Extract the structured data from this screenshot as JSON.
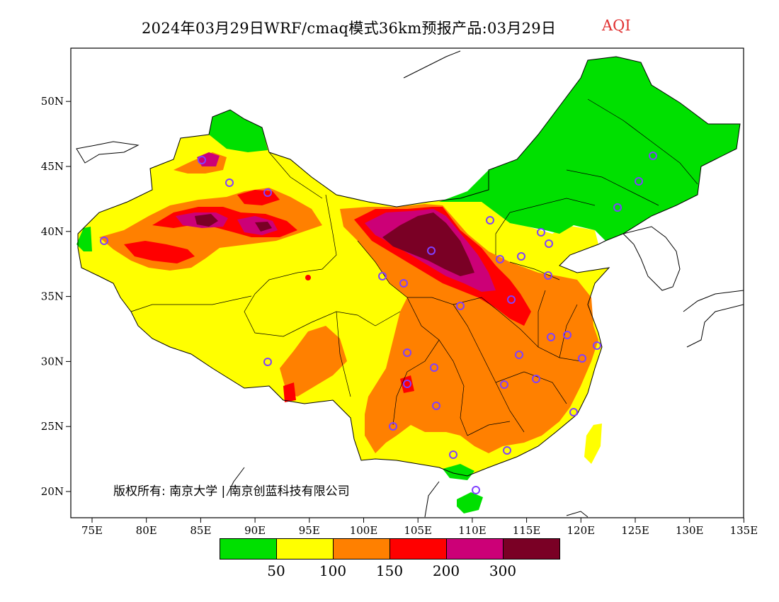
{
  "title": {
    "main": "2024年03月29日WRF/cmaq模式36km预报产品:03月29日",
    "variable": "AQI"
  },
  "axes": {
    "lon_ticks": [
      "75E",
      "80E",
      "85E",
      "90E",
      "95E",
      "100E",
      "105E",
      "110E",
      "115E",
      "120E",
      "125E",
      "130E",
      "135E"
    ],
    "lat_ticks": [
      "20N",
      "25N",
      "30N",
      "35N",
      "40N",
      "45N",
      "50N"
    ]
  },
  "copyright": "版权所有: 南京大学 | 南京创蓝科技有限公司",
  "legend": {
    "colors": [
      "#00e000",
      "#ffff00",
      "#ff8000",
      "#ff0000",
      "#cc0077",
      "#7a0025"
    ],
    "labels": [
      "50",
      "100",
      "150",
      "200",
      "300"
    ]
  },
  "colors": {
    "frame": "#000000",
    "station_marker": "#8040ff"
  }
}
